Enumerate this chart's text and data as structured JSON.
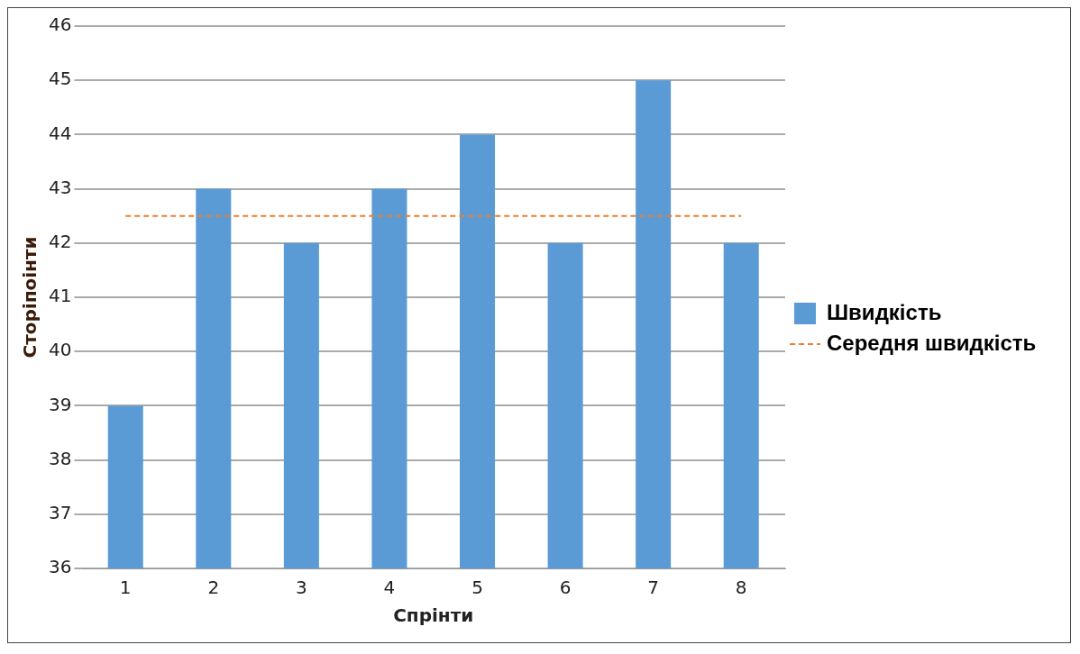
{
  "chart_data": {
    "type": "bar",
    "xlabel": "Спрінти",
    "ylabel": "Сторіпоінти",
    "categories": [
      "1",
      "2",
      "3",
      "4",
      "5",
      "6",
      "7",
      "8"
    ],
    "series": [
      {
        "name": "Швидкість",
        "color": "#5b9bd5",
        "values": [
          39,
          43,
          42,
          43,
          44,
          42,
          45,
          42
        ]
      },
      {
        "name": "Середня швидкість",
        "type": "line",
        "color": "#ed7d31",
        "line_style": "dashed",
        "marker": "none",
        "values": [
          42.5,
          42.5,
          42.5,
          42.5,
          42.5,
          42.5,
          42.5,
          42.5
        ]
      }
    ],
    "ylim": [
      36,
      46
    ],
    "yticks": [
      36,
      37,
      38,
      39,
      40,
      41,
      42,
      43,
      44,
      45,
      46
    ],
    "grid": "y",
    "legend": "right"
  }
}
